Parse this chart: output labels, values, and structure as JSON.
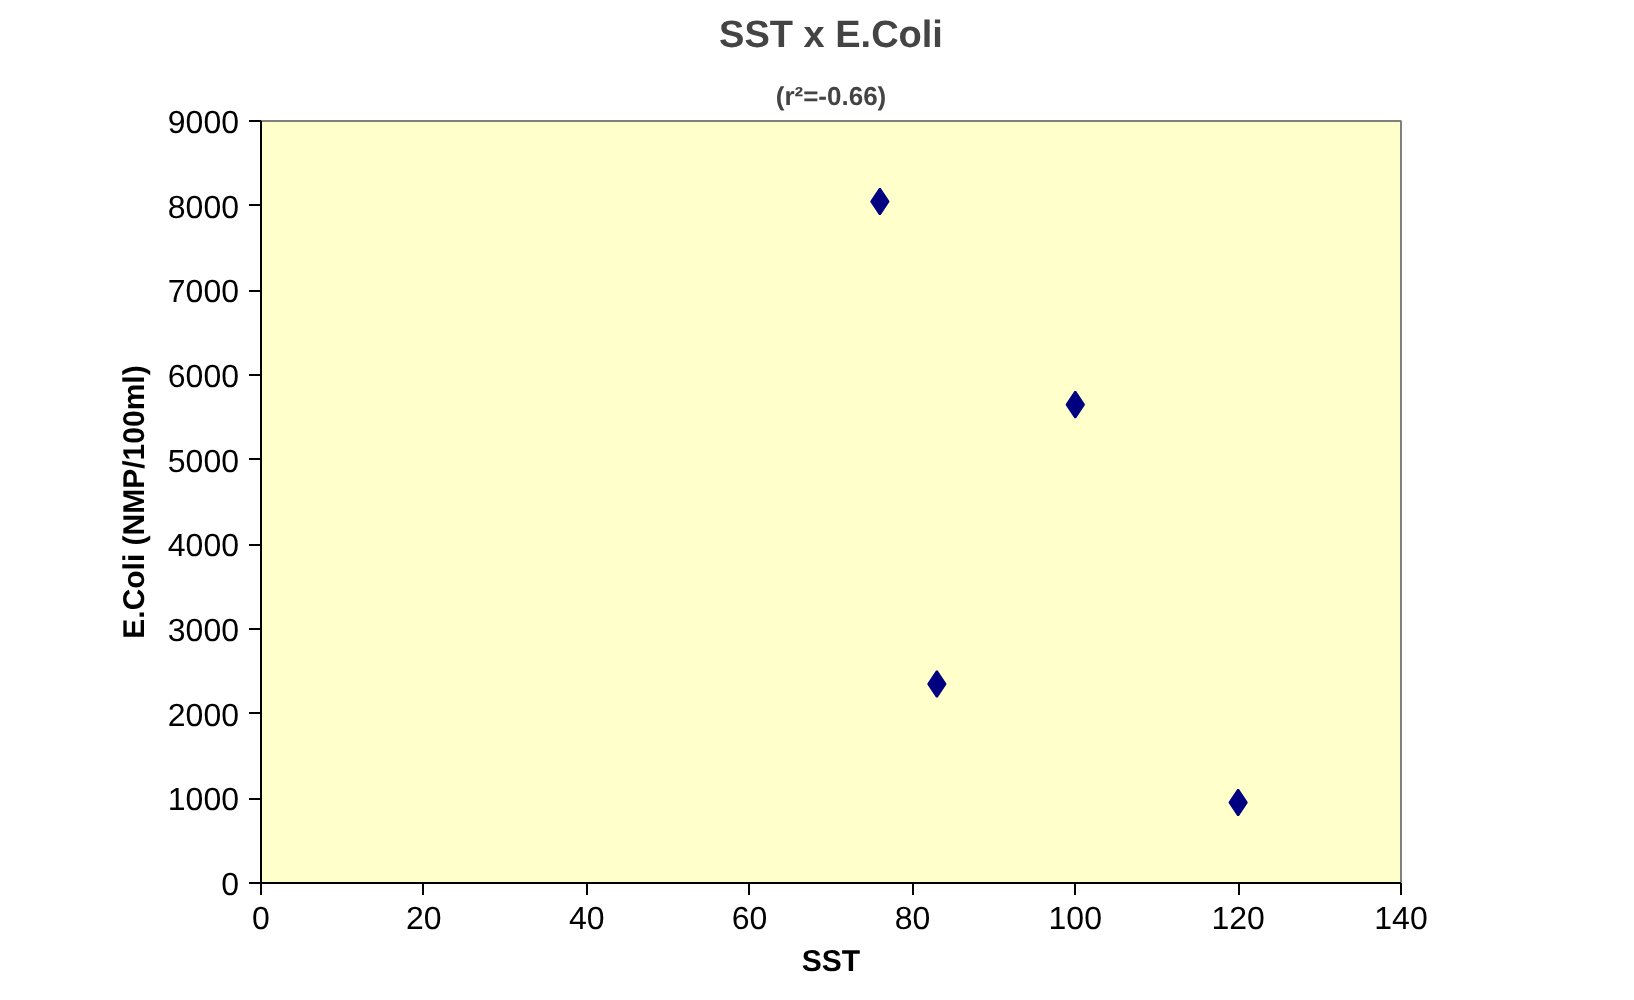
{
  "chart_data": {
    "type": "scatter",
    "title": "SST x E.Coli",
    "subtitle": "(r²=-0.66)",
    "xlabel": "SST",
    "ylabel": "E.Coli (NMP/100ml)",
    "x": [
      76,
      83,
      100,
      120
    ],
    "series": [
      {
        "color": "#000080",
        "values": [
          8050,
          2350,
          5650,
          950
        ]
      }
    ],
    "xlim": [
      0,
      140
    ],
    "xticks": [
      0,
      20,
      40,
      60,
      80,
      100,
      120,
      140
    ],
    "ylim": [
      0,
      9000
    ],
    "yticks": [
      0,
      1000,
      2000,
      3000,
      4000,
      5000,
      6000,
      7000,
      8000,
      9000
    ],
    "grid": false,
    "marker": "diamond"
  }
}
